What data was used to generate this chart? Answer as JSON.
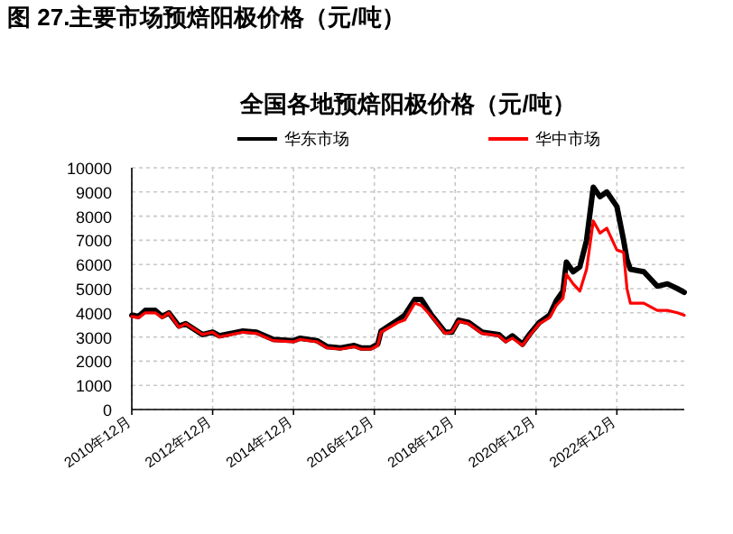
{
  "chart_data": {
    "type": "line",
    "title": "图 27.主要市场预焙阳极价格（元/吨）",
    "subtitle": "全国各地预焙阳极价格（元/吨）",
    "x": [
      "2010-12",
      "2011-02",
      "2011-04",
      "2011-07",
      "2011-09",
      "2011-11",
      "2012-02",
      "2012-04",
      "2012-09",
      "2012-12",
      "2013-02",
      "2013-09",
      "2014-01",
      "2014-06",
      "2014-12",
      "2015-02",
      "2015-07",
      "2015-10",
      "2016-02",
      "2016-06",
      "2016-08",
      "2016-11",
      "2017-01",
      "2017-02",
      "2017-07",
      "2017-09",
      "2017-12",
      "2018-02",
      "2018-05",
      "2018-09",
      "2018-11",
      "2019-01",
      "2019-04",
      "2019-08",
      "2020-01",
      "2020-03",
      "2020-05",
      "2020-08",
      "2020-10",
      "2021-01",
      "2021-04",
      "2021-06",
      "2021-08",
      "2021-09",
      "2021-11",
      "2022-01",
      "2022-03",
      "2022-05",
      "2022-07",
      "2022-09",
      "2022-12",
      "2023-02",
      "2023-03",
      "2023-04",
      "2023-08",
      "2023-12",
      "2024-03",
      "2024-06",
      "2024-08"
    ],
    "series": [
      {
        "name": "华东市场",
        "color": "#000000",
        "values": [
          3900,
          3850,
          4100,
          4100,
          3850,
          4000,
          3450,
          3550,
          3100,
          3200,
          3050,
          3250,
          3200,
          2900,
          2850,
          2950,
          2850,
          2600,
          2550,
          2650,
          2550,
          2550,
          2700,
          3250,
          3700,
          3900,
          4550,
          4550,
          3900,
          3200,
          3200,
          3700,
          3600,
          3200,
          3100,
          2850,
          3050,
          2700,
          3100,
          3600,
          3900,
          4500,
          4900,
          6100,
          5700,
          5900,
          7000,
          9200,
          8800,
          9000,
          8400,
          7000,
          6200,
          5800,
          5700,
          5100,
          5200,
          5000,
          4850
        ]
      },
      {
        "name": "华中市场",
        "color": "#ff0000",
        "values": [
          3850,
          3800,
          4000,
          4000,
          3800,
          4000,
          3400,
          3550,
          3100,
          3200,
          3000,
          3200,
          3150,
          2850,
          2800,
          2900,
          2800,
          2550,
          2500,
          2600,
          2500,
          2500,
          2650,
          3200,
          3600,
          3700,
          4400,
          4300,
          3850,
          3150,
          3200,
          3650,
          3550,
          3150,
          3050,
          2800,
          2950,
          2650,
          3050,
          3550,
          3800,
          4300,
          4600,
          5600,
          5200,
          4900,
          5800,
          7800,
          7300,
          7500,
          6600,
          6500,
          5000,
          4400,
          4400,
          4100,
          4100,
          4000,
          3900
        ]
      }
    ],
    "xlim": [
      "2010-12",
      "2024-08"
    ],
    "xticks": [
      {
        "value": "2010-12",
        "label": "2010年12月"
      },
      {
        "value": "2012-12",
        "label": "2012年12月"
      },
      {
        "value": "2014-12",
        "label": "2014年12月"
      },
      {
        "value": "2016-12",
        "label": "2016年12月"
      },
      {
        "value": "2018-12",
        "label": "2018年12月"
      },
      {
        "value": "2020-12",
        "label": "2020年12月"
      },
      {
        "value": "2022-12",
        "label": "2022年12月"
      }
    ],
    "ylim": [
      0,
      10000
    ],
    "yticks": [
      0,
      1000,
      2000,
      3000,
      4000,
      5000,
      6000,
      7000,
      8000,
      9000,
      10000
    ],
    "grid": true,
    "legend": "top"
  }
}
